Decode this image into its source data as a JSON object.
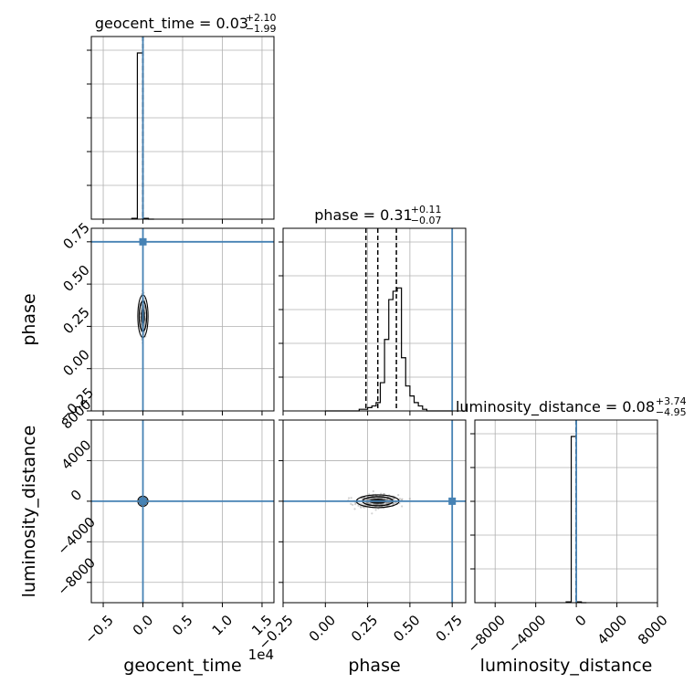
{
  "chart_data": {
    "type": "corner",
    "parameters": [
      "geocent_time",
      "phase",
      "luminosity_distance"
    ],
    "truths": {
      "geocent_time": 0.0,
      "phase": 0.75,
      "luminosity_distance": 0.0
    },
    "truth_color": "#4682b4",
    "grid": true,
    "ranges": {
      "geocent_time": [
        -6500,
        16500
      ],
      "phase": [
        -0.25,
        0.83
      ],
      "luminosity_distance": [
        -10000,
        8000
      ]
    },
    "ticks": {
      "geocent_time": {
        "values": [
          -5000,
          0,
          5000,
          10000,
          15000
        ],
        "labels": [
          "−0.5",
          "0.0",
          "0.5",
          "1.0",
          "1.5"
        ],
        "offset_text": "1e4"
      },
      "phase": {
        "values": [
          -0.25,
          0.0,
          0.25,
          0.5,
          0.75
        ],
        "labels": [
          "−0.25",
          "0.00",
          "0.25",
          "0.50",
          "0.75"
        ]
      },
      "luminosity_distance": {
        "values": [
          -8000,
          -4000,
          0,
          4000,
          8000
        ],
        "labels": [
          "−8000",
          "−4000",
          "0",
          "4000",
          "8000"
        ]
      }
    },
    "titles": [
      {
        "param": "geocent_time",
        "main": "geocent_time = 0.03",
        "sup": "+2.10",
        "sub": "−1.99"
      },
      {
        "param": "phase",
        "main": "phase = 0.31",
        "sup": "+0.11",
        "sub": "−0.07"
      },
      {
        "param": "luminosity_distance",
        "main": "luminosity_distance = 0.08",
        "sup": "+3.74",
        "sub": "−4.95"
      }
    ],
    "quantiles": {
      "geocent_time": [
        -1.96,
        0.03,
        2.13
      ],
      "phase": [
        0.24,
        0.31,
        0.42
      ],
      "luminosity_distance": [
        -4.87,
        0.08,
        3.82
      ]
    },
    "histograms": {
      "geocent_time": {
        "bin_edges": [
          -1400,
          -700,
          0,
          700,
          1400
        ],
        "counts": [
          0.005,
          1.0,
          0.005,
          0.0
        ]
      },
      "phase": {
        "bin_edges": [
          0.0,
          0.025,
          0.05,
          0.075,
          0.1,
          0.125,
          0.15,
          0.175,
          0.2,
          0.225,
          0.25,
          0.275,
          0.3,
          0.325,
          0.35,
          0.375,
          0.4,
          0.425,
          0.45,
          0.475,
          0.5,
          0.525,
          0.55,
          0.575,
          0.6,
          0.625,
          0.65,
          0.675,
          0.7,
          0.725,
          0.75
        ],
        "counts": [
          0.0,
          0.0,
          0.0,
          0.0,
          0.0,
          0.0,
          0.0,
          0.0,
          0.01,
          0.01,
          0.02,
          0.03,
          0.05,
          0.17,
          0.43,
          0.67,
          0.72,
          0.74,
          0.32,
          0.15,
          0.09,
          0.05,
          0.03,
          0.01,
          0.0,
          0.0,
          0.0,
          0.0,
          0.0,
          0.0
        ]
      },
      "luminosity_distance": {
        "bin_edges": [
          -1000,
          -500,
          0,
          500,
          1000
        ],
        "counts": [
          0.005,
          1.0,
          0.005,
          0.0
        ]
      }
    },
    "scatter_2d": {
      "phase_vs_geocent_time": {
        "x_center": 0.0,
        "x_spread": 120,
        "y_center": 0.31,
        "y_spread": 0.06,
        "n": 260
      },
      "luminosity_distance_vs_geocent_time": {
        "x_center": 0.0,
        "x_spread": 100,
        "y_center": 0.0,
        "y_spread": 150,
        "n": 80
      },
      "luminosity_distance_vs_phase": {
        "x_center": 0.31,
        "x_spread": 0.06,
        "y_center": 0.0,
        "y_spread": 300,
        "n": 420
      }
    }
  }
}
